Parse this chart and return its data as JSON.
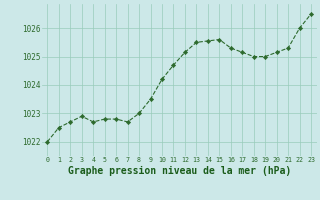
{
  "x": [
    0,
    1,
    2,
    3,
    4,
    5,
    6,
    7,
    8,
    9,
    10,
    11,
    12,
    13,
    14,
    15,
    16,
    17,
    18,
    19,
    20,
    21,
    22,
    23
  ],
  "y": [
    1022.0,
    1022.5,
    1022.7,
    1022.9,
    1022.7,
    1022.8,
    1022.8,
    1022.7,
    1023.0,
    1023.5,
    1024.2,
    1024.7,
    1025.15,
    1025.5,
    1025.55,
    1025.6,
    1025.3,
    1025.15,
    1025.0,
    1025.0,
    1025.15,
    1025.3,
    1026.0,
    1026.5
  ],
  "line_color": "#2d6a2d",
  "marker_color": "#2d6a2d",
  "bg_color": "#cce8e8",
  "grid_color": "#99ccbb",
  "xlabel": "Graphe pression niveau de la mer (hPa)",
  "xlabel_color": "#1a5c1a",
  "yticks": [
    1022,
    1023,
    1024,
    1025,
    1026
  ],
  "xtick_labels": [
    "0",
    "1",
    "2",
    "3",
    "4",
    "5",
    "6",
    "7",
    "8",
    "9",
    "10",
    "11",
    "12",
    "13",
    "14",
    "15",
    "16",
    "17",
    "18",
    "19",
    "20",
    "21",
    "22",
    "23"
  ],
  "ylim": [
    1021.5,
    1026.85
  ],
  "xlim": [
    -0.5,
    23.5
  ],
  "tick_color": "#2d6a2d",
  "ytick_fontsize": 5.5,
  "xtick_fontsize": 4.8,
  "xlabel_fontsize": 7.0,
  "linewidth": 0.8,
  "markersize": 2.2
}
